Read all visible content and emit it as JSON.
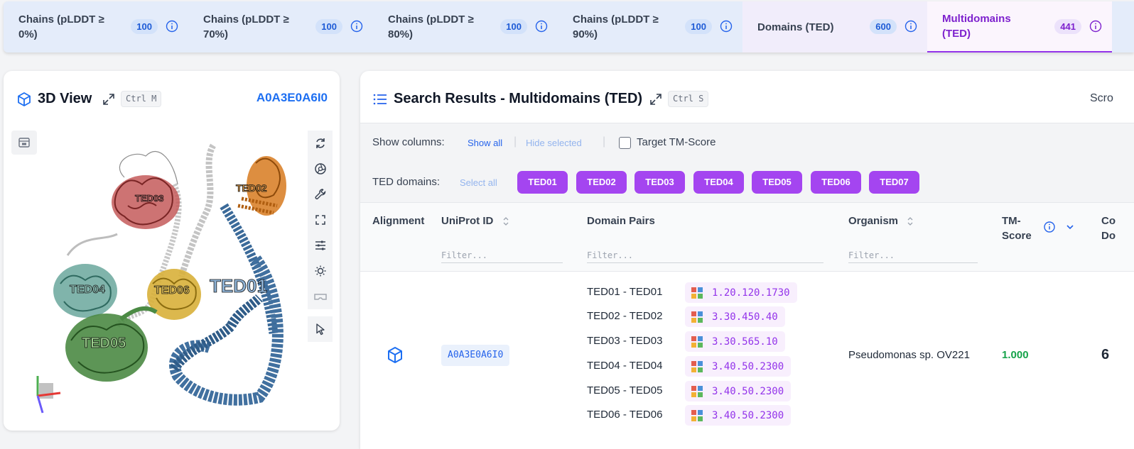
{
  "tabs": [
    {
      "label": "Chains (pLDDT ≥ 0%)",
      "count": "100"
    },
    {
      "label": "Chains (pLDDT ≥ 70%)",
      "count": "100"
    },
    {
      "label": "Chains (pLDDT ≥ 80%)",
      "count": "100"
    },
    {
      "label": "Chains (pLDDT ≥ 90%)",
      "count": "100"
    },
    {
      "label": "Domains (TED)",
      "count": "600"
    },
    {
      "label": "Multidomains (TED)",
      "count": "441"
    }
  ],
  "active_tab": "Multidomains (TED)",
  "view3d": {
    "title": "3D View",
    "shortcut": "Ctrl M",
    "structure_id": "A0A3E0A6I0",
    "domain_labels": [
      "TED01",
      "TED02",
      "TED03",
      "TED04",
      "TED05",
      "TED06"
    ]
  },
  "results": {
    "title": "Search Results - Multidomains (TED)",
    "shortcut": "Ctrl S",
    "score_cut": "Scro",
    "show_columns_label": "Show columns:",
    "show_all": "Show all",
    "hide_selected": "Hide selected",
    "target_tm_label": "Target TM-Score",
    "ted_domains_label": "TED domains:",
    "select_all": "Select all",
    "ted_buttons": [
      "TED01",
      "TED02",
      "TED03",
      "TED04",
      "TED05",
      "TED06",
      "TED07"
    ],
    "columns": {
      "alignment": "Alignment",
      "uniprot": "UniProt ID",
      "domain_pairs": "Domain Pairs",
      "organism": "Organism",
      "tm_line1": "TM-",
      "tm_line2": "Score",
      "cut_line1": "Co",
      "cut_line2": "Do"
    },
    "filter_placeholder": "Filter...",
    "row": {
      "uniprot_id": "A0A3E0A6I0",
      "pairs": [
        {
          "pair": "TED01 - TED01",
          "cath": "1.20.120.1730"
        },
        {
          "pair": "TED02 - TED02",
          "cath": "3.30.450.40"
        },
        {
          "pair": "TED03 - TED03",
          "cath": "3.30.565.10"
        },
        {
          "pair": "TED04 - TED04",
          "cath": "3.40.50.2300"
        },
        {
          "pair": "TED05 - TED05",
          "cath": "3.40.50.2300"
        },
        {
          "pair": "TED06 - TED06",
          "cath": "3.40.50.2300"
        }
      ],
      "organism": "Pseudomonas sp. OV221",
      "tm_score": "1.000",
      "cut_value": "6"
    }
  },
  "colors": {
    "accent_purple": "#a445f0",
    "link_blue": "#2563eb",
    "tm_green": "#16a34a",
    "ted01": "#3b6a99",
    "ted02": "#d9822b",
    "ted03": "#b84a4a",
    "ted04": "#5b9a8f",
    "ted05": "#3f7d3a",
    "ted06": "#d8b03a"
  }
}
